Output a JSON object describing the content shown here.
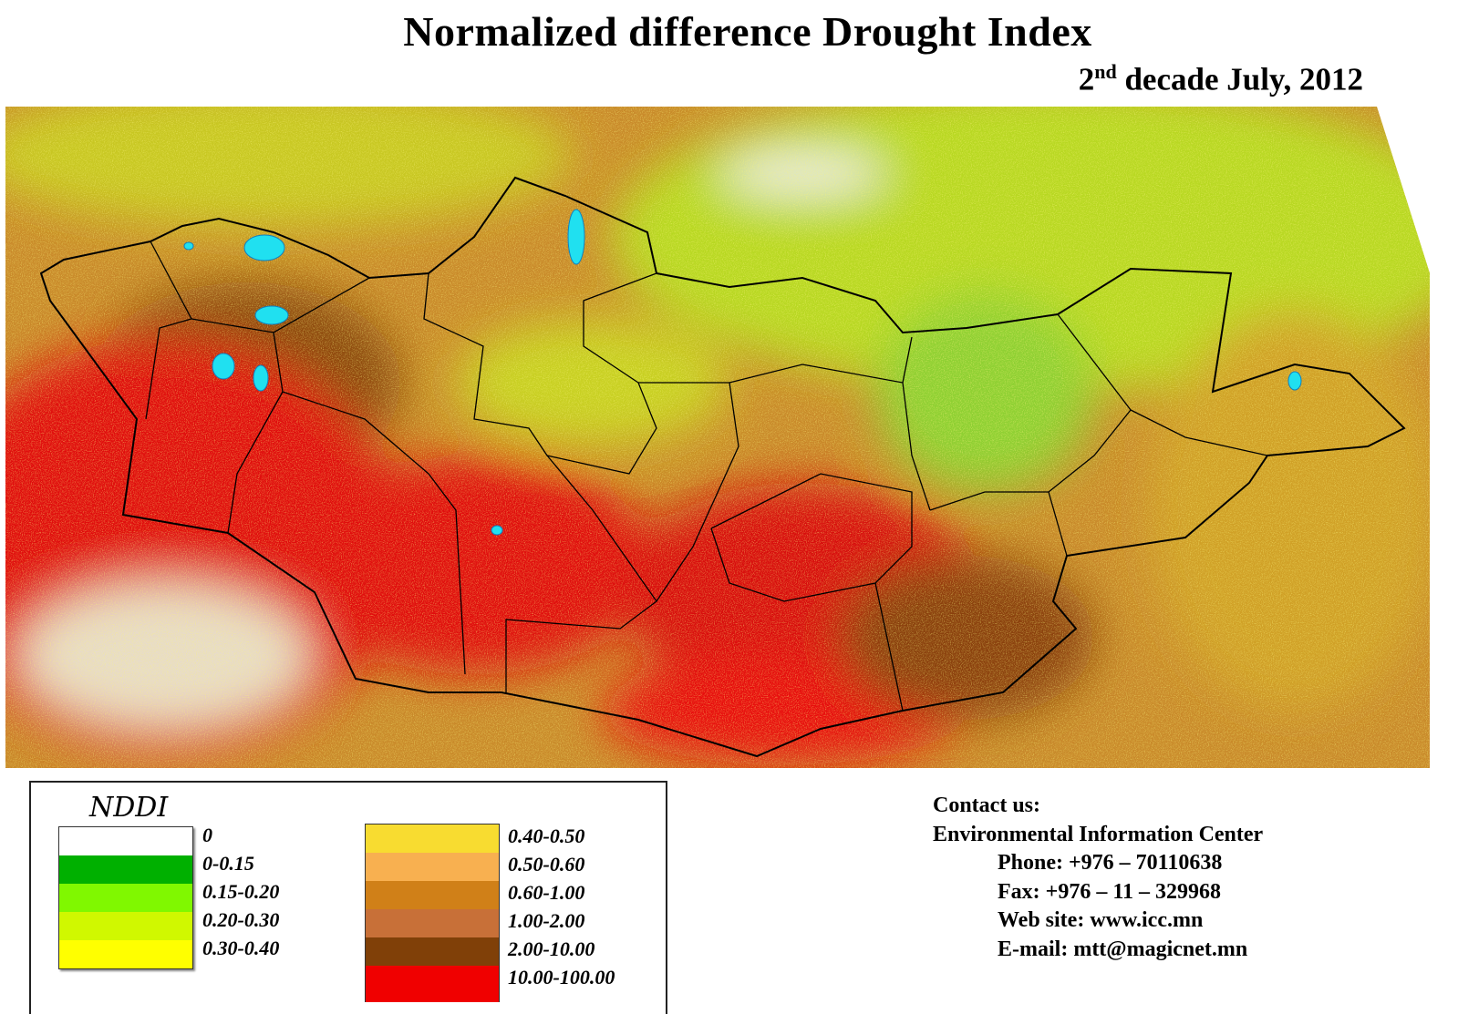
{
  "title": "Normalized difference Drought Index",
  "subtitle": {
    "ordinal": "2",
    "suffix": "nd",
    "rest": " decade July, 2012"
  },
  "legend": {
    "title": "NDDI",
    "left_column": [
      {
        "label": "0",
        "color": "#ffffff"
      },
      {
        "label": "0-0.15",
        "color": "#00b000"
      },
      {
        "label": "0.15-0.20",
        "color": "#80f800"
      },
      {
        "label": "0.20-0.30",
        "color": "#d0f800"
      },
      {
        "label": "0.30-0.40",
        "color": "#ffff00"
      }
    ],
    "right_column": [
      {
        "label": "0.40-0.50",
        "color": "#f8dc30"
      },
      {
        "label": "0.50-0.60",
        "color": "#f8b050"
      },
      {
        "label": "0.60-1.00",
        "color": "#d08018"
      },
      {
        "label": "1.00-2.00",
        "color": "#c87038"
      },
      {
        "label": "2.00-10.00",
        "color": "#804008"
      },
      {
        "label": "10.00-100.00",
        "color": "#f00000"
      }
    ]
  },
  "contact": {
    "heading": "Contact us:",
    "org": "Environmental Information Center",
    "phone": "Phone: +976 – 70110638",
    "fax": "Fax: +976 – 11 – 329968",
    "web": "Web site: www.icc.mn",
    "email": "E-mail: mtt@magicnet.mn"
  }
}
